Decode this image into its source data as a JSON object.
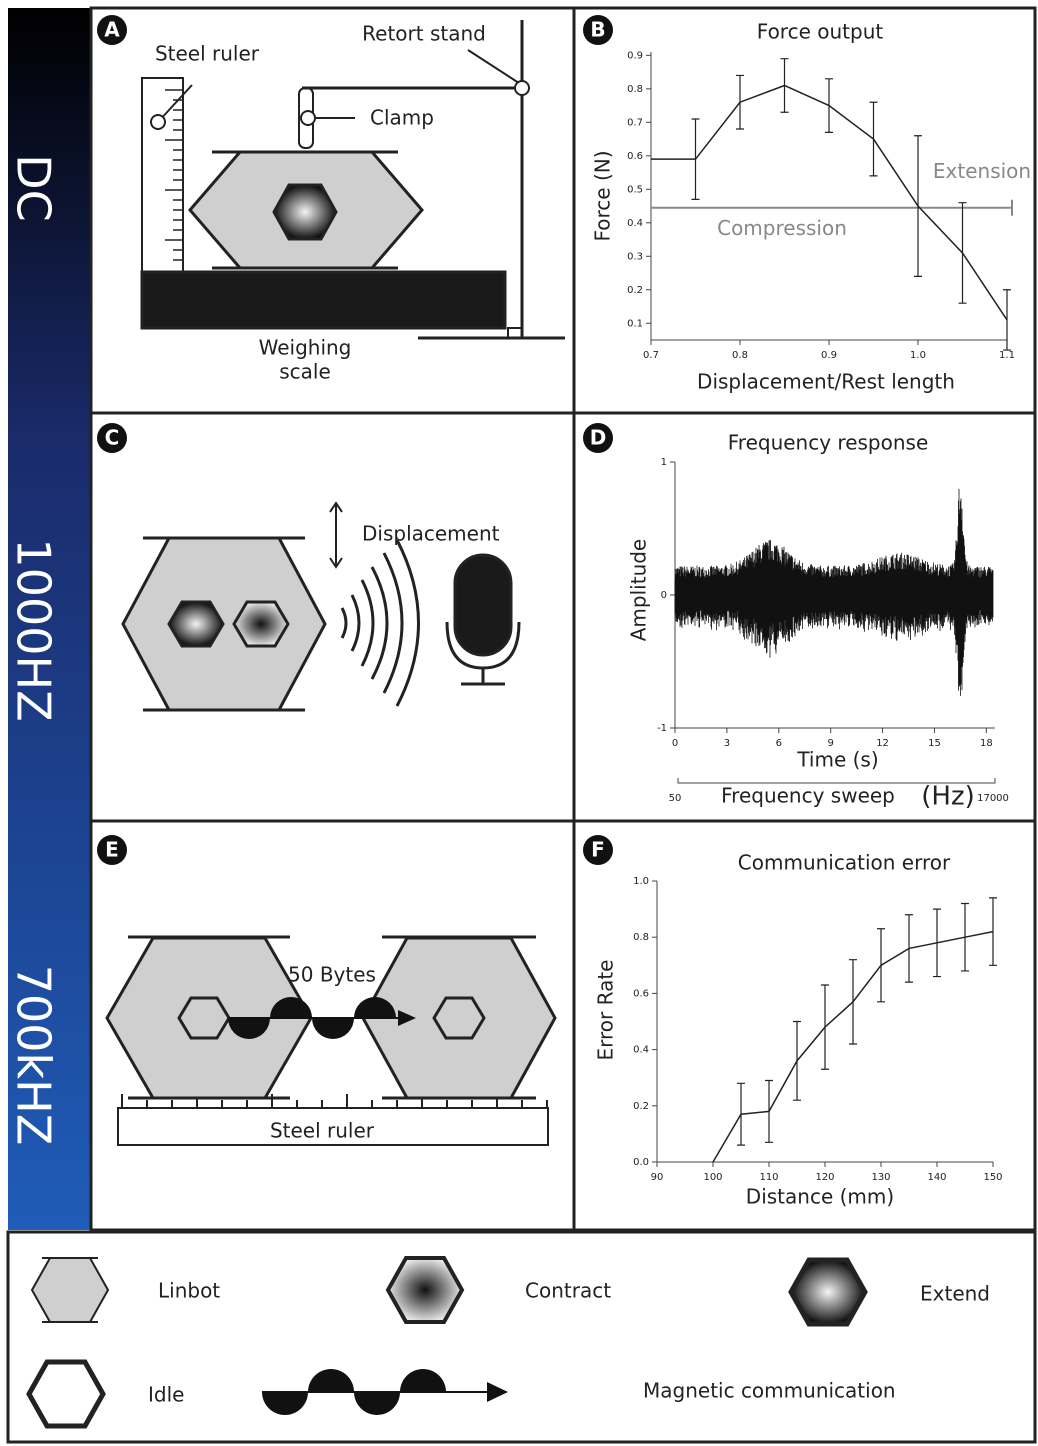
{
  "side_labels": [
    "DC",
    "1000HZ",
    "700kHZ"
  ],
  "panel_letters": [
    "A",
    "B",
    "C",
    "D",
    "E",
    "F"
  ],
  "panel_a": {
    "steel_ruler": "Steel ruler",
    "retort_stand": "Retort stand",
    "clamp": "Clamp",
    "scale": [
      "Weighing",
      "scale"
    ]
  },
  "panel_c": {
    "label": "Displacement"
  },
  "panel_e": {
    "bytes": "50 Bytes",
    "ruler": "Steel ruler"
  },
  "legend": [
    "Linbot",
    "Contract",
    "Extend",
    "Idle",
    "Magnetic communication"
  ],
  "chart_data": [
    {
      "type": "line",
      "title": "Force output",
      "xlabel": "Displacement/Rest length",
      "ylabel": "Force (N)",
      "x": [
        0.7,
        0.75,
        0.8,
        0.85,
        0.9,
        0.95,
        1.0,
        1.05,
        1.1
      ],
      "values": [
        0.59,
        0.59,
        0.76,
        0.81,
        0.75,
        0.65,
        0.45,
        0.31,
        0.11
      ],
      "errors": [
        null,
        0.12,
        0.08,
        0.08,
        0.08,
        0.11,
        0.21,
        0.15,
        0.09
      ],
      "xlim": [
        0.7,
        1.1
      ],
      "xticks": [
        0.7,
        0.8,
        0.9,
        {
          "value": 1,
          "label": "1.0"
        },
        1.1
      ],
      "ylim": [
        0.05,
        0.91
      ],
      "yticks": [
        0.1,
        0.2,
        0.3,
        0.4,
        0.5,
        0.6,
        0.7,
        0.8,
        0.9
      ],
      "hline": 0.445,
      "annotations": [
        "Extension",
        "Compression"
      ],
      "color": "#222"
    },
    {
      "type": "waveform",
      "title": "Frequency response",
      "xlabel": "Time (s)",
      "ylabel": "Amplitude",
      "xlim": [
        0,
        18.5
      ],
      "xticks": [
        0,
        3,
        6,
        9,
        12,
        15,
        18
      ],
      "ylim": [
        -1,
        1
      ],
      "yticks": [
        -1,
        0,
        1
      ],
      "sweep": {
        "label": "Frequency sweep",
        "unit": "(Hz)",
        "start": 50,
        "end": 17000
      },
      "color": "#111"
    },
    {
      "type": "line",
      "title": "Communication error",
      "xlabel": "Distance (mm)",
      "ylabel": "Error Rate",
      "x": [
        100,
        105,
        110,
        115,
        120,
        125,
        130,
        135,
        140,
        145,
        150
      ],
      "values": [
        0,
        0.17,
        0.18,
        0.36,
        0.48,
        0.57,
        0.7,
        0.76,
        0.78,
        0.8,
        0.82
      ],
      "errors": [
        null,
        0.11,
        0.11,
        0.14,
        0.15,
        0.15,
        0.13,
        0.12,
        0.12,
        0.12,
        0.12
      ],
      "xlim": [
        90,
        150
      ],
      "xticks": [
        90,
        100,
        110,
        120,
        130,
        140,
        150
      ],
      "ylim": [
        0,
        1
      ],
      "yticks": [
        {
          "value": 0,
          "label": "0.0"
        },
        0.2,
        0.4,
        0.6,
        0.8,
        {
          "value": 1,
          "label": "1.0"
        }
      ],
      "color": "#222"
    }
  ]
}
